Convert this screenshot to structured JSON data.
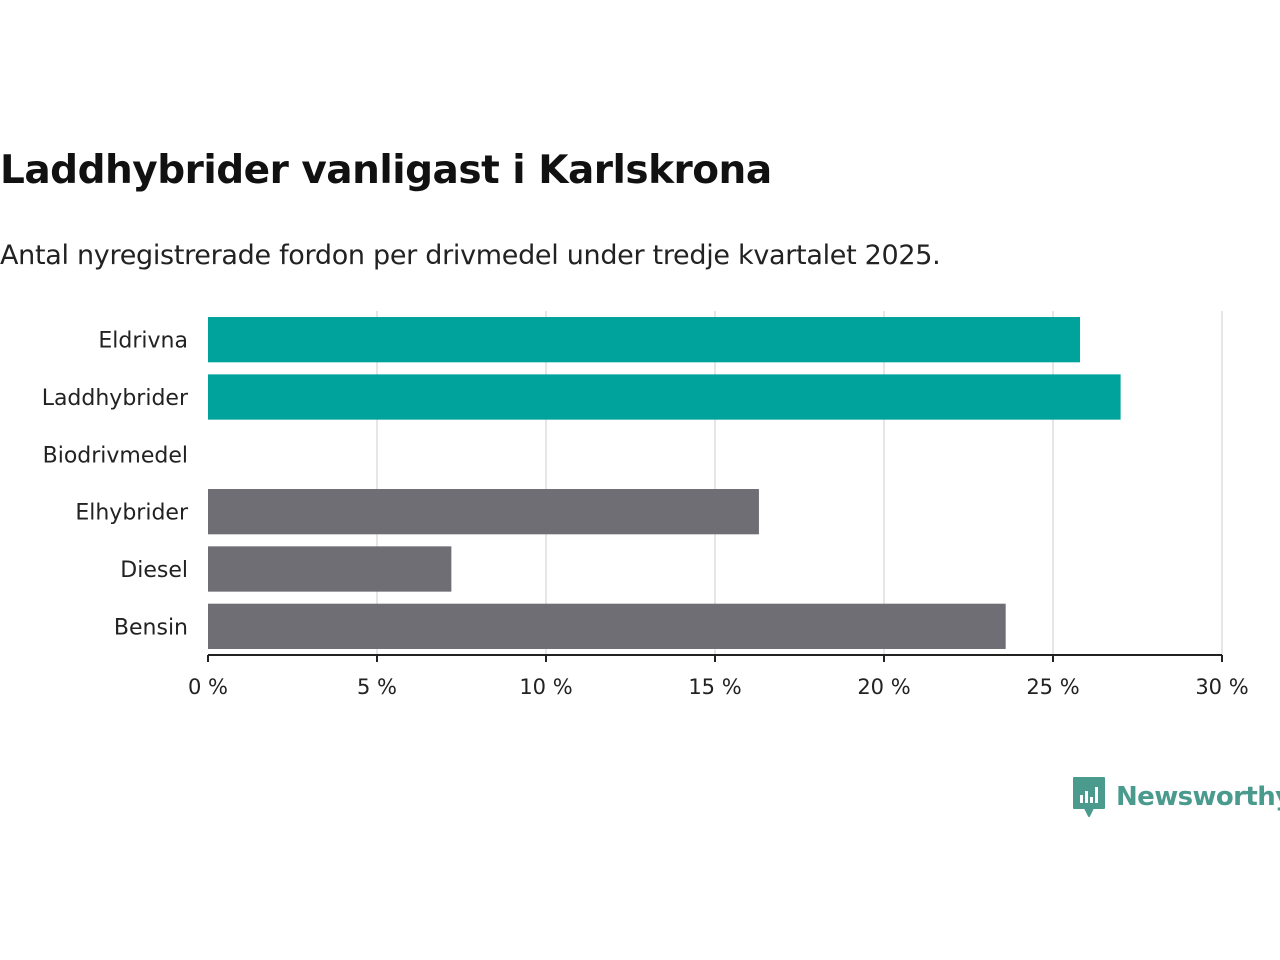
{
  "title": "Laddhybrider vanligast i Karlskrona",
  "subtitle": "Antal nyregistrerade fordon per drivmedel under tredje kvartalet 2025.",
  "brand": {
    "name": "Newsworthy",
    "icon": "newsworthy-logo-icon",
    "color": "#4a9a8e"
  },
  "chart_data": {
    "type": "bar",
    "orientation": "horizontal",
    "categories": [
      "Eldrivna",
      "Laddhybrider",
      "Biodrivmedel",
      "Elhybrider",
      "Diesel",
      "Bensin"
    ],
    "values": [
      25.8,
      27.0,
      0,
      16.3,
      7.2,
      23.6
    ],
    "colors": [
      "#00a39b",
      "#00a39b",
      "#6e6e74",
      "#6e6e74",
      "#6e6e74",
      "#6e6e74"
    ],
    "xlim": [
      0,
      30
    ],
    "xticks": [
      0,
      5,
      10,
      15,
      20,
      25,
      30
    ],
    "xtick_labels": [
      "0 %",
      "5 %",
      "10 %",
      "15 %",
      "20 %",
      "25 %",
      "30 %"
    ],
    "xlabel": "",
    "ylabel": "",
    "grid": "vertical"
  }
}
